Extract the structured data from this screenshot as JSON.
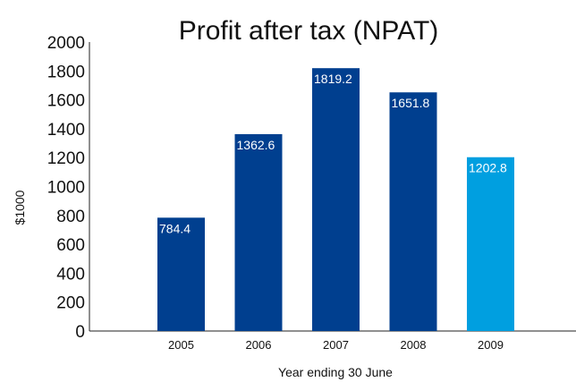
{
  "chart_data": {
    "type": "bar",
    "title": "Profit after tax (NPAT)",
    "xlabel": "Year ending 30 June",
    "ylabel": "$1000",
    "categories": [
      "2005",
      "2006",
      "2007",
      "2008",
      "2009"
    ],
    "values": [
      784.4,
      1362.6,
      1819.2,
      1651.8,
      1202.8
    ],
    "value_labels": [
      "784.4",
      "1362.6",
      "1819.2",
      "1651.8",
      "1202.8"
    ],
    "ylim": [
      0,
      2000
    ],
    "yticks": [
      "0",
      "200",
      "400",
      "600",
      "800",
      "1000",
      "1200",
      "1400",
      "1600",
      "1800",
      "2000"
    ],
    "grid": false,
    "colors": [
      "#003f8f",
      "#003f8f",
      "#003f8f",
      "#003f8f",
      "#009fe0"
    ]
  }
}
